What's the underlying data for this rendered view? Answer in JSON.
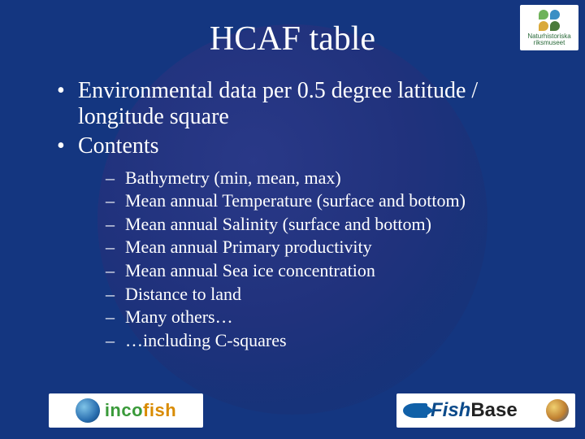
{
  "title": "HCAF table",
  "bullets": [
    "Environmental data per 0.5 degree latitude / longitude square",
    "Contents"
  ],
  "sub_bullets": [
    "Bathymetry (min, mean, max)",
    "Mean annual Temperature (surface and bottom)",
    "Mean annual Salinity (surface and bottom)",
    "Mean annual Primary productivity",
    "Mean annual Sea ice concentration",
    "Distance to land",
    "Many others…",
    "…including C-squares"
  ],
  "logos": {
    "top_right": {
      "line1": "Naturhistoriska",
      "line2": "riksmuseet",
      "petal_colors": [
        "#6fb25a",
        "#3a8fc4",
        "#d9a93a",
        "#4a7a3a"
      ]
    },
    "bottom_left": {
      "text_green": "inco",
      "text_orange": "fish"
    },
    "bottom_right": {
      "text_fish": "Fish",
      "text_base": "Base"
    }
  },
  "colors": {
    "background": "#143680",
    "text": "#ffffff"
  }
}
